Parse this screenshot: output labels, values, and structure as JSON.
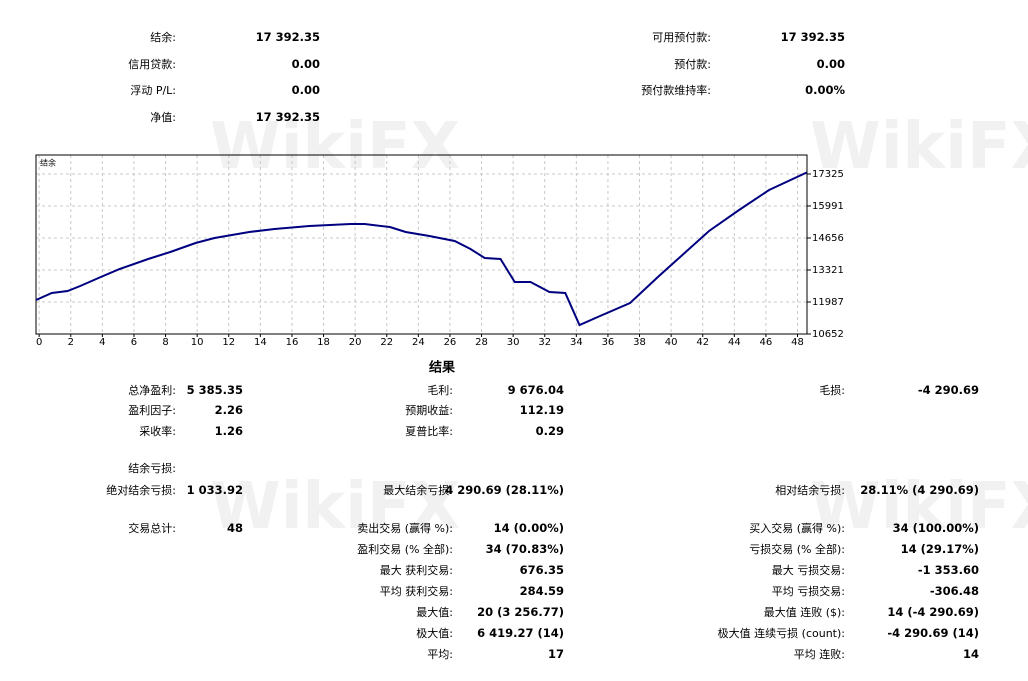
{
  "watermark": "WikiFX",
  "account": {
    "left": [
      {
        "label": "结余:",
        "value": "17 392.35"
      },
      {
        "label": "信用贷款:",
        "value": "0.00"
      },
      {
        "label": "浮动 P/L:",
        "value": "0.00"
      },
      {
        "label": "净值:",
        "value": "17 392.35"
      }
    ],
    "right": [
      {
        "label": "可用预付款:",
        "value": "17 392.35"
      },
      {
        "label": "预付款:",
        "value": "0.00"
      },
      {
        "label": "预付款维持率:",
        "value": "0.00%"
      }
    ]
  },
  "chart_data": {
    "type": "line",
    "x": [
      -0.2,
      0.8,
      1.8,
      2.6,
      3.9,
      5.1,
      6.9,
      8.3,
      9.9,
      11.1,
      13.3,
      14.9,
      17.1,
      19.7,
      20.6,
      22.2,
      23.2,
      24.7,
      26.3,
      27.3,
      28.2,
      29.2,
      30.1,
      31.1,
      32.3,
      33.3,
      34.2,
      35.5,
      37.4,
      39.3,
      40.5,
      42.4,
      44.3,
      46.2,
      48.6
    ],
    "series": [
      {
        "name": "结余",
        "color": "#000080",
        "values": [
          12070,
          12362,
          12445,
          12654,
          13029,
          13363,
          13780,
          14072,
          14447,
          14656,
          14906,
          15031,
          15156,
          15239,
          15239,
          15114,
          14906,
          14739,
          14530,
          14197,
          13822,
          13780,
          12820,
          12820,
          12403,
          12362,
          11027,
          11403,
          11945,
          13113,
          13822,
          14948,
          15823,
          16657,
          17392
        ]
      }
    ],
    "xlim": [
      -0.2,
      48.6
    ],
    "xticks": [
      0,
      2,
      4,
      6,
      8,
      10,
      12,
      14,
      16,
      18,
      20,
      22,
      24,
      26,
      28,
      30,
      32,
      34,
      36,
      38,
      40,
      42,
      44,
      46,
      48
    ],
    "ylim": [
      10652,
      18117
    ],
    "yticks": [
      10652,
      11987,
      13321,
      14656,
      15991,
      17325
    ],
    "grid": true
  },
  "results": {
    "title": "结果",
    "col1": [
      {
        "label": "总净盈利:",
        "value": "5 385.35"
      },
      {
        "label": "盈利因子:",
        "value": "2.26"
      },
      {
        "label": "采收率:",
        "value": "1.26"
      },
      {
        "label": "结余亏损:"
      },
      {
        "label": "绝对结余亏损:",
        "value": "1 033.92"
      },
      {
        "label": "交易总计:",
        "value": "48"
      }
    ],
    "col2": [
      {
        "label": "毛利:",
        "value": "9 676.04"
      },
      {
        "label": "预期收益:",
        "value": "112.19"
      },
      {
        "label": "夏普比率:",
        "value": "0.29"
      },
      {
        "label": "最大结余亏损:",
        "value": "4 290.69 (28.11%)"
      },
      {
        "label": "卖出交易 (赢得 %):",
        "value": "14 (0.00%)"
      },
      {
        "label": "盈利交易 (% 全部):",
        "value": "34 (70.83%)"
      },
      {
        "label": "最大 获利交易:",
        "value": "676.35"
      },
      {
        "label": "平均 获利交易:",
        "value": "284.59"
      },
      {
        "label": "最大值:",
        "value": "20 (3 256.77)"
      },
      {
        "label": "极大值:",
        "value": "6 419.27 (14)"
      },
      {
        "label": "平均:",
        "value": "17"
      }
    ],
    "col3": [
      {
        "label": "毛损:",
        "value": "-4 290.69"
      },
      {
        "label": "相对结余亏损:",
        "value": "28.11% (4 290.69)"
      },
      {
        "label": "买入交易 (赢得 %):",
        "value": "34 (100.00%)"
      },
      {
        "label": "亏损交易 (% 全部):",
        "value": "14 (29.17%)"
      },
      {
        "label": "最大 亏损交易:",
        "value": "-1 353.60"
      },
      {
        "label": "平均 亏损交易:",
        "value": "-306.48"
      },
      {
        "label": "最大值 连败 ($):",
        "value": "14 (-4 290.69)"
      },
      {
        "label": "极大值 连续亏损 (count):",
        "value": "-4 290.69 (14)"
      },
      {
        "label": "平均 连败:",
        "value": "14"
      }
    ]
  }
}
